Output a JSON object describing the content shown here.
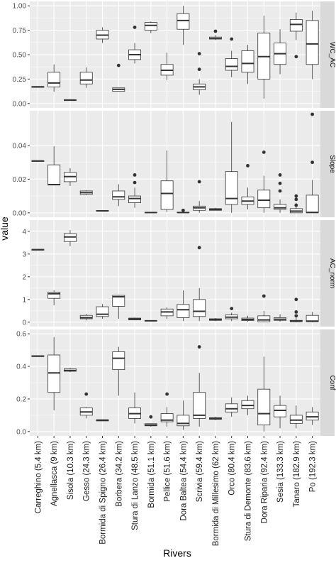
{
  "chart_data": [
    {
      "type": "box",
      "facet": "WC_AC",
      "ylim": [
        0,
        1.0
      ],
      "yticks": [
        0.0,
        0.25,
        0.5,
        0.75,
        1.0
      ],
      "ytick_labels": [
        "0.00",
        "0.25",
        "0.50",
        "0.75",
        "1.00"
      ],
      "boxes": [
        {
          "q1": 0.165,
          "med": 0.17,
          "q3": 0.175,
          "lo": 0.165,
          "hi": 0.175,
          "out": []
        },
        {
          "q1": 0.17,
          "med": 0.21,
          "q3": 0.32,
          "lo": 0.12,
          "hi": 0.4,
          "out": []
        },
        {
          "q1": 0.03,
          "med": 0.035,
          "q3": 0.04,
          "lo": 0.03,
          "hi": 0.04,
          "out": []
        },
        {
          "q1": 0.2,
          "med": 0.24,
          "q3": 0.32,
          "lo": 0.16,
          "hi": 0.37,
          "out": []
        },
        {
          "q1": 0.66,
          "med": 0.7,
          "q3": 0.75,
          "lo": 0.62,
          "hi": 0.78,
          "out": []
        },
        {
          "q1": 0.125,
          "med": 0.145,
          "q3": 0.16,
          "lo": 0.125,
          "hi": 0.16,
          "out": [
            0.39
          ]
        },
        {
          "q1": 0.45,
          "med": 0.5,
          "q3": 0.55,
          "lo": 0.41,
          "hi": 0.62,
          "out": [
            0.78
          ]
        },
        {
          "q1": 0.75,
          "med": 0.8,
          "q3": 0.83,
          "lo": 0.72,
          "hi": 0.84,
          "out": []
        },
        {
          "q1": 0.29,
          "med": 0.34,
          "q3": 0.4,
          "lo": 0.24,
          "hi": 0.52,
          "out": []
        },
        {
          "q1": 0.76,
          "med": 0.85,
          "q3": 0.92,
          "lo": 0.6,
          "hi": 1.0,
          "out": []
        },
        {
          "q1": 0.14,
          "med": 0.17,
          "q3": 0.2,
          "lo": 0.09,
          "hi": 0.25,
          "out": [
            0.35,
            0.51
          ]
        },
        {
          "q1": 0.66,
          "med": 0.665,
          "q3": 0.68,
          "lo": 0.65,
          "hi": 0.7,
          "out": [
            0.74
          ]
        },
        {
          "q1": 0.34,
          "med": 0.38,
          "q3": 0.46,
          "lo": 0.27,
          "hi": 0.54,
          "out": [
            0.66
          ]
        },
        {
          "q1": 0.32,
          "med": 0.41,
          "q3": 0.54,
          "lo": 0.2,
          "hi": 0.6,
          "out": []
        },
        {
          "q1": 0.25,
          "med": 0.48,
          "q3": 0.72,
          "lo": 0.05,
          "hi": 0.9,
          "out": []
        },
        {
          "q1": 0.4,
          "med": 0.51,
          "q3": 0.62,
          "lo": 0.3,
          "hi": 0.76,
          "out": []
        },
        {
          "q1": 0.74,
          "med": 0.81,
          "q3": 0.86,
          "lo": 0.65,
          "hi": 0.93,
          "out": [
            0.48
          ]
        },
        {
          "q1": 0.4,
          "med": 0.61,
          "q3": 0.85,
          "lo": 0.25,
          "hi": 0.95,
          "out": []
        }
      ]
    },
    {
      "type": "box",
      "facet": "Slope",
      "ylim": [
        0,
        0.058
      ],
      "yticks": [
        0.0,
        0.02,
        0.04
      ],
      "ytick_labels": [
        "0.00",
        "0.02",
        "0.04"
      ],
      "boxes": [
        {
          "q1": 0.0305,
          "med": 0.0308,
          "q3": 0.031,
          "lo": 0.0305,
          "hi": 0.031,
          "out": []
        },
        {
          "q1": 0.0165,
          "med": 0.0168,
          "q3": 0.0285,
          "lo": 0.0165,
          "hi": 0.0395,
          "out": []
        },
        {
          "q1": 0.0185,
          "med": 0.0215,
          "q3": 0.024,
          "lo": 0.016,
          "hi": 0.0265,
          "out": []
        },
        {
          "q1": 0.011,
          "med": 0.012,
          "q3": 0.013,
          "lo": 0.0105,
          "hi": 0.0135,
          "out": []
        },
        {
          "q1": 0.001,
          "med": 0.0012,
          "q3": 0.0014,
          "lo": 0.001,
          "hi": 0.0014,
          "out": []
        },
        {
          "q1": 0.008,
          "med": 0.0095,
          "q3": 0.013,
          "lo": 0.004,
          "hi": 0.017,
          "out": []
        },
        {
          "q1": 0.006,
          "med": 0.0085,
          "q3": 0.01,
          "lo": 0.003,
          "hi": 0.015,
          "out": [
            0.018,
            0.0225
          ]
        },
        {
          "q1": 0.0001,
          "med": 0.0002,
          "q3": 0.0003,
          "lo": 0.0001,
          "hi": 0.0003,
          "out": []
        },
        {
          "q1": 0.002,
          "med": 0.0115,
          "q3": 0.019,
          "lo": 0.0005,
          "hi": 0.037,
          "out": []
        },
        {
          "q1": 0.0001,
          "med": 0.0002,
          "q3": 0.0004,
          "lo": 0.0,
          "hi": 0.001,
          "out": [
            0.0015
          ]
        },
        {
          "q1": 0.0015,
          "med": 0.003,
          "q3": 0.004,
          "lo": 0.0,
          "hi": 0.007,
          "out": [
            0.0185
          ]
        },
        {
          "q1": 0.0015,
          "med": 0.002,
          "q3": 0.0025,
          "lo": 0.0015,
          "hi": 0.003,
          "out": []
        },
        {
          "q1": 0.005,
          "med": 0.0085,
          "q3": 0.0245,
          "lo": 0.0,
          "hi": 0.054,
          "out": []
        },
        {
          "q1": 0.005,
          "med": 0.007,
          "q3": 0.0095,
          "lo": 0.002,
          "hi": 0.015,
          "out": [
            0.028
          ]
        },
        {
          "q1": 0.003,
          "med": 0.0075,
          "q3": 0.0135,
          "lo": 0.0,
          "hi": 0.022,
          "out": [
            0.036
          ]
        },
        {
          "q1": 0.002,
          "med": 0.003,
          "q3": 0.005,
          "lo": 0.0,
          "hi": 0.008,
          "out": [
            0.013,
            0.0175,
            0.0225
          ]
        },
        {
          "q1": 0.0,
          "med": 0.001,
          "q3": 0.0025,
          "lo": 0.0,
          "hi": 0.006,
          "out": [
            0.0045,
            0.008,
            0.01
          ]
        },
        {
          "q1": 0.0,
          "med": 0.0003,
          "q3": 0.0105,
          "lo": 0.0,
          "hi": 0.0195,
          "out": [
            0.03,
            0.0585
          ]
        }
      ]
    },
    {
      "type": "box",
      "facet": "AC_norm",
      "ylim": [
        0,
        4.3
      ],
      "yticks": [
        0,
        1,
        2,
        3,
        4
      ],
      "ytick_labels": [
        "0",
        "1",
        "2",
        "3",
        "4"
      ],
      "boxes": [
        {
          "q1": 3.17,
          "med": 3.19,
          "q3": 3.21,
          "lo": 3.17,
          "hi": 3.21,
          "out": []
        },
        {
          "q1": 1.05,
          "med": 1.25,
          "q3": 1.32,
          "lo": 0.75,
          "hi": 1.4,
          "out": []
        },
        {
          "q1": 3.55,
          "med": 3.75,
          "q3": 3.9,
          "lo": 3.35,
          "hi": 4.05,
          "out": []
        },
        {
          "q1": 0.15,
          "med": 0.2,
          "q3": 0.3,
          "lo": 0.08,
          "hi": 0.37,
          "out": []
        },
        {
          "q1": 0.25,
          "med": 0.35,
          "q3": 0.68,
          "lo": 0.15,
          "hi": 0.8,
          "out": []
        },
        {
          "q1": 0.7,
          "med": 1.12,
          "q3": 1.18,
          "lo": 0.15,
          "hi": 1.2,
          "out": []
        },
        {
          "q1": 0.1,
          "med": 0.14,
          "q3": 0.18,
          "lo": 0.08,
          "hi": 0.2,
          "out": []
        },
        {
          "q1": 0.05,
          "med": 0.06,
          "q3": 0.07,
          "lo": 0.05,
          "hi": 0.07,
          "out": []
        },
        {
          "q1": 0.28,
          "med": 0.45,
          "q3": 0.58,
          "lo": 0.15,
          "hi": 0.65,
          "out": []
        },
        {
          "q1": 0.2,
          "med": 0.55,
          "q3": 0.78,
          "lo": 0.05,
          "hi": 1.4,
          "out": []
        },
        {
          "q1": 0.25,
          "med": 0.48,
          "q3": 1.0,
          "lo": 0.05,
          "hi": 1.5,
          "out": [
            3.28
          ]
        },
        {
          "q1": 0.08,
          "med": 0.12,
          "q3": 0.15,
          "lo": 0.05,
          "hi": 0.18,
          "out": []
        },
        {
          "q1": 0.15,
          "med": 0.22,
          "q3": 0.32,
          "lo": 0.05,
          "hi": 0.42,
          "out": [
            0.6
          ]
        },
        {
          "q1": 0.07,
          "med": 0.12,
          "q3": 0.18,
          "lo": 0.02,
          "hi": 0.28,
          "out": []
        },
        {
          "q1": 0.02,
          "med": 0.1,
          "q3": 0.28,
          "lo": 0.0,
          "hi": 0.5,
          "out": [
            1.15
          ]
        },
        {
          "q1": 0.08,
          "med": 0.13,
          "q3": 0.2,
          "lo": 0.02,
          "hi": 0.35,
          "out": []
        },
        {
          "q1": 0.02,
          "med": 0.05,
          "q3": 0.08,
          "lo": 0.0,
          "hi": 0.2,
          "out": [
            0.28,
            0.45,
            1.0
          ]
        },
        {
          "q1": 0.02,
          "med": 0.05,
          "q3": 0.3,
          "lo": 0.0,
          "hi": 0.45,
          "out": []
        }
      ]
    },
    {
      "type": "box",
      "facet": "Conf",
      "ylim": [
        0,
        0.6
      ],
      "yticks": [
        0.0,
        0.2,
        0.4,
        0.6
      ],
      "ytick_labels": [
        "0.0",
        "0.2",
        "0.4",
        "0.6"
      ],
      "boxes": [
        {
          "q1": 0.46,
          "med": 0.463,
          "q3": 0.466,
          "lo": 0.46,
          "hi": 0.466,
          "out": []
        },
        {
          "q1": 0.24,
          "med": 0.36,
          "q3": 0.47,
          "lo": 0.13,
          "hi": 0.58,
          "out": []
        },
        {
          "q1": 0.37,
          "med": 0.375,
          "q3": 0.385,
          "lo": 0.365,
          "hi": 0.39,
          "out": []
        },
        {
          "q1": 0.1,
          "med": 0.12,
          "q3": 0.145,
          "lo": 0.08,
          "hi": 0.15,
          "out": [
            0.23
          ]
        },
        {
          "q1": 0.065,
          "med": 0.07,
          "q3": 0.072,
          "lo": 0.065,
          "hi": 0.072,
          "out": []
        },
        {
          "q1": 0.38,
          "med": 0.45,
          "q3": 0.49,
          "lo": 0.22,
          "hi": 0.52,
          "out": []
        },
        {
          "q1": 0.08,
          "med": 0.11,
          "q3": 0.145,
          "lo": 0.05,
          "hi": 0.24,
          "out": []
        },
        {
          "q1": 0.035,
          "med": 0.04,
          "q3": 0.048,
          "lo": 0.03,
          "hi": 0.05,
          "out": [
            0.09
          ]
        },
        {
          "q1": 0.06,
          "med": 0.07,
          "q3": 0.11,
          "lo": 0.03,
          "hi": 0.15,
          "out": [
            0.23
          ]
        },
        {
          "q1": 0.035,
          "med": 0.05,
          "q3": 0.1,
          "lo": 0.01,
          "hi": 0.19,
          "out": []
        },
        {
          "q1": 0.08,
          "med": 0.1,
          "q3": 0.24,
          "lo": 0.03,
          "hi": 0.36,
          "out": [
            0.52
          ]
        },
        {
          "q1": 0.075,
          "med": 0.08,
          "q3": 0.085,
          "lo": 0.07,
          "hi": 0.09,
          "out": []
        },
        {
          "q1": 0.12,
          "med": 0.14,
          "q3": 0.17,
          "lo": 0.09,
          "hi": 0.21,
          "out": []
        },
        {
          "q1": 0.14,
          "med": 0.16,
          "q3": 0.19,
          "lo": 0.1,
          "hi": 0.22,
          "out": []
        },
        {
          "q1": 0.04,
          "med": 0.11,
          "q3": 0.26,
          "lo": 0.0,
          "hi": 0.46,
          "out": []
        },
        {
          "q1": 0.09,
          "med": 0.13,
          "q3": 0.16,
          "lo": 0.02,
          "hi": 0.22,
          "out": []
        },
        {
          "q1": 0.05,
          "med": 0.07,
          "q3": 0.1,
          "lo": 0.02,
          "hi": 0.16,
          "out": []
        },
        {
          "q1": 0.07,
          "med": 0.09,
          "q3": 0.12,
          "lo": 0.04,
          "hi": 0.15,
          "out": []
        }
      ]
    }
  ],
  "categories": [
    "Carreghino (5.4 km)",
    "Agnellasca (9 km)",
    "Sisola (10.3 km)",
    "Gesso (24.3 km)",
    "Bormida di Spigno (26.4 km)",
    "Borbera (34.2 km)",
    "Stura di Lanzo (48.5 km)",
    "Bormida (51.1 km)",
    "Pellice (51.6 km)",
    "Dora Baltea (54.4 km)",
    "Scrivia (59.4 km)",
    "Bormida di Millesimo (62 km)",
    "Orco (80.4 km)",
    "Stura di Demonte (83.6 km)",
    "Dora Riparia (92.4 km)",
    "Sesia (133.3 km)",
    "Tanaro (182.9 km)",
    "Po (192.3 km)"
  ],
  "xlabel": "Rivers",
  "ylabel": "value",
  "colors": {
    "panel_bg": "#ebebeb",
    "grid": "#ffffff",
    "strip_bg": "#d9d9d9",
    "box_fill": "#ffffff",
    "box_line": "#333333",
    "text": "#4d4d4d",
    "title_text": "#000000"
  }
}
